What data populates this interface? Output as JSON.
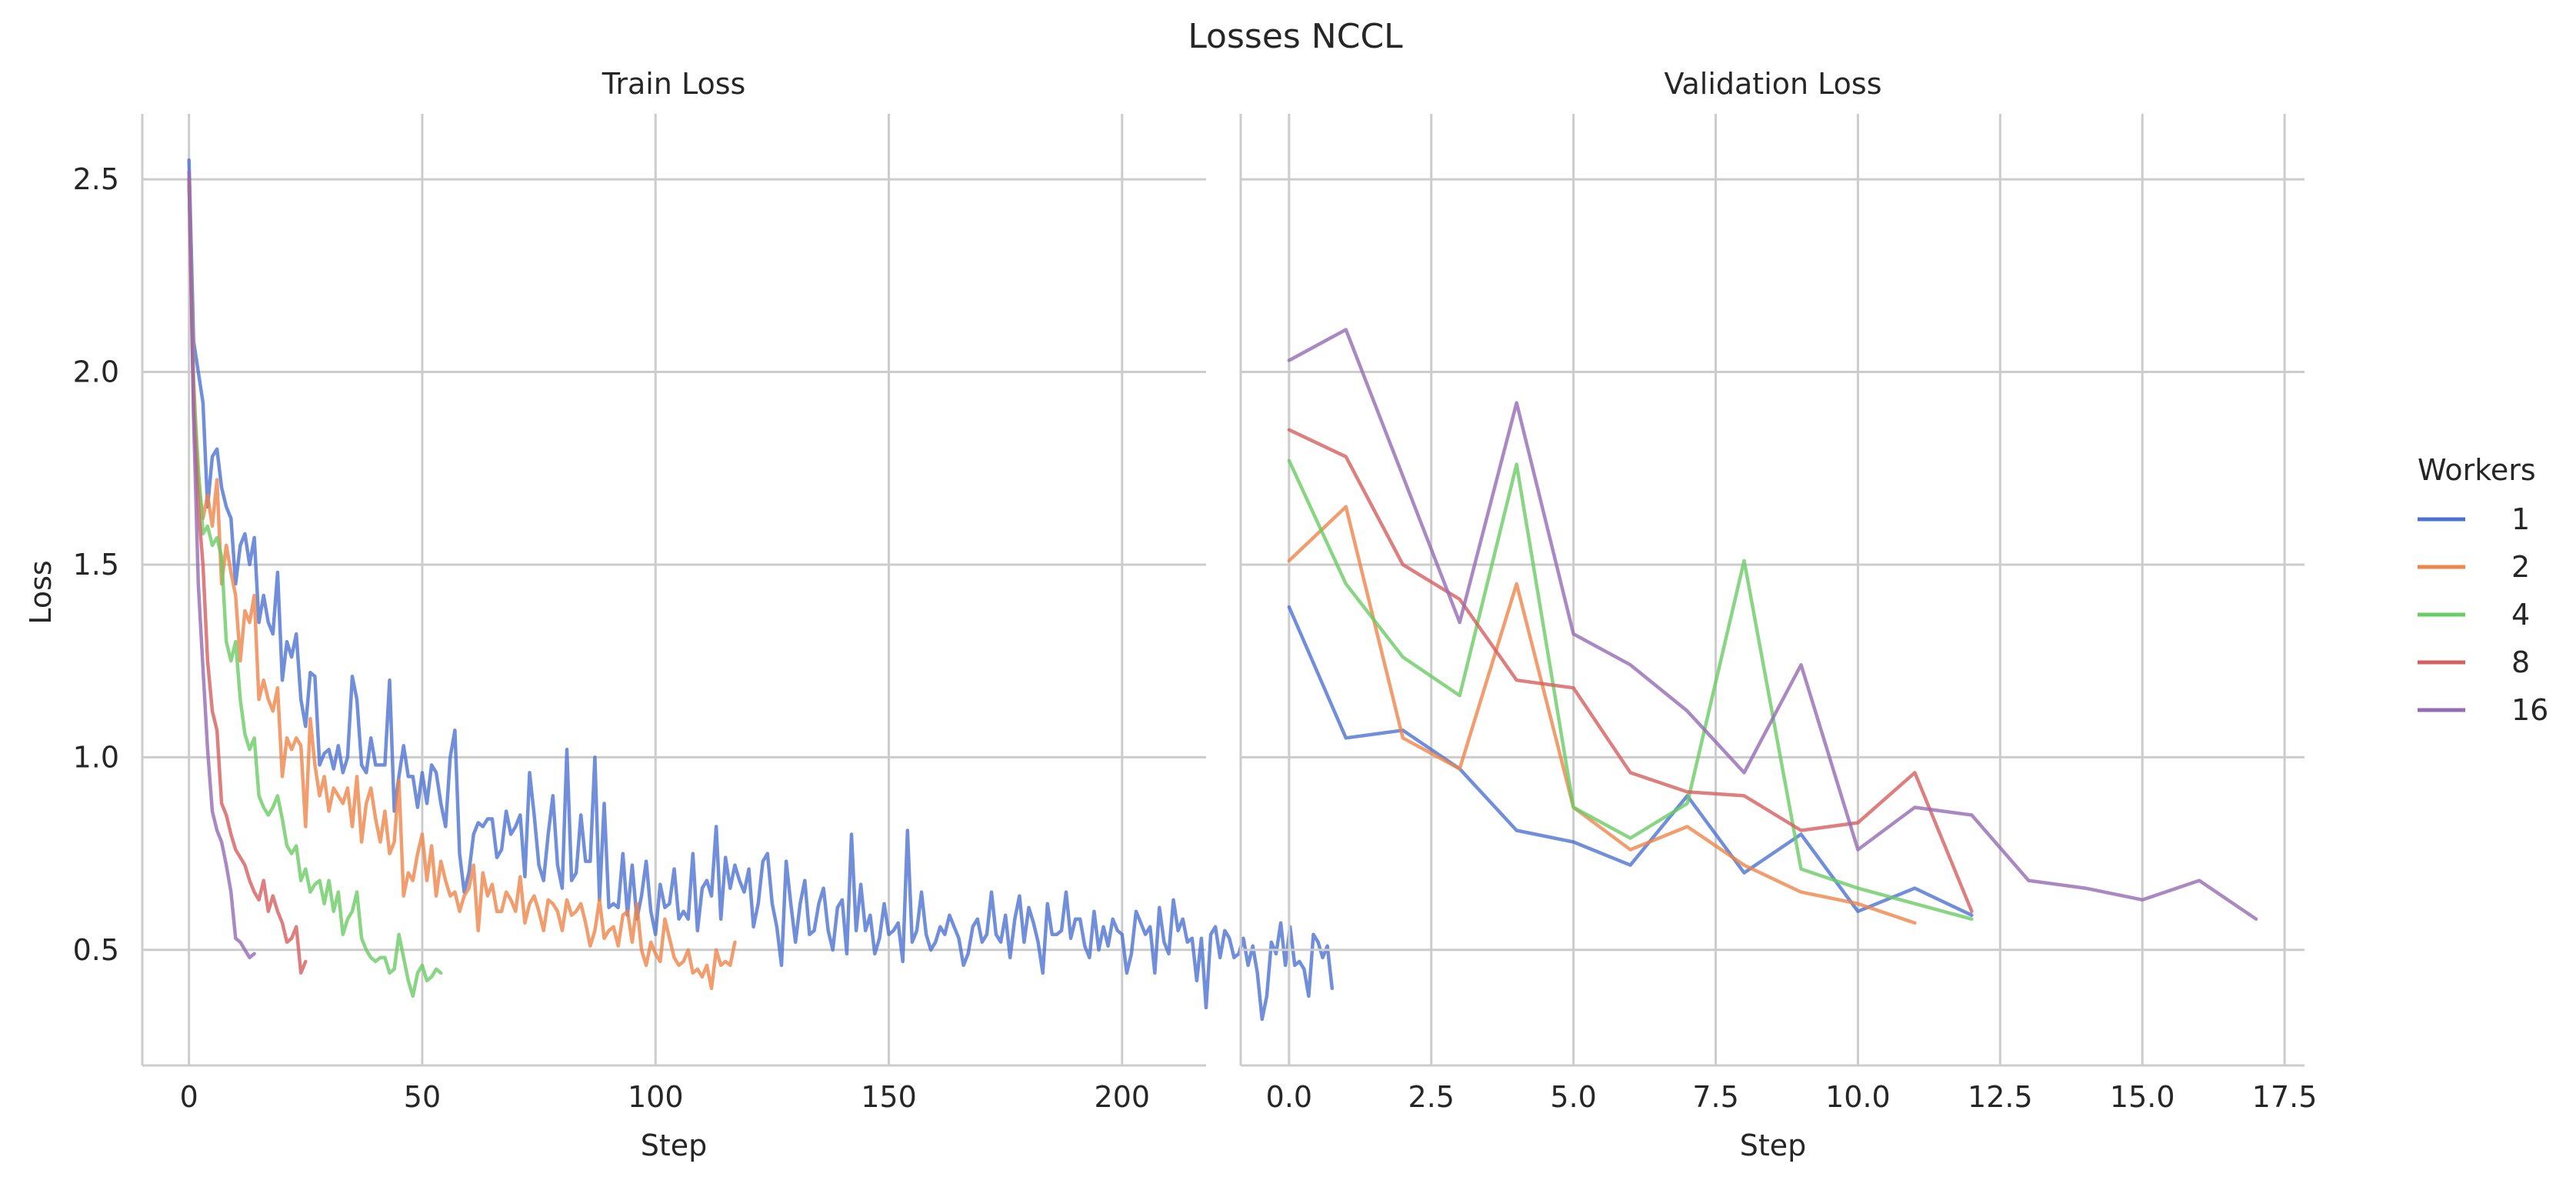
{
  "figure": {
    "title": "Losses NCCL",
    "legend": {
      "title": "Workers",
      "placement": "right"
    }
  },
  "colors": {
    "1": "#4c72d0",
    "2": "#ee854a",
    "4": "#6acc64",
    "8": "#d65f5f",
    "16": "#956cb4",
    "grid": "#cccccc",
    "axis": "#cccccc"
  },
  "chart_data": [
    {
      "type": "line",
      "title": "Train Loss",
      "xlabel": "Step",
      "ylabel": "Loss",
      "xlim": [
        -10,
        218
      ],
      "ylim": [
        0.2,
        2.67
      ],
      "xticks": [
        0,
        50,
        100,
        150,
        200
      ],
      "xtick_labels": [
        "0",
        "50",
        "100",
        "150",
        "200"
      ],
      "yticks": [
        0.5,
        1.0,
        1.5,
        2.0,
        2.5
      ],
      "ytick_labels": [
        "0.5",
        "1.0",
        "1.5",
        "2.0",
        "2.5"
      ],
      "grid": true,
      "series": [
        {
          "name": "1",
          "x_start": 0,
          "values": [
            2.55,
            2.08,
            2.0,
            1.92,
            1.65,
            1.78,
            1.8,
            1.7,
            1.65,
            1.62,
            1.45,
            1.55,
            1.58,
            1.5,
            1.57,
            1.35,
            1.42,
            1.35,
            1.32,
            1.48,
            1.2,
            1.3,
            1.26,
            1.32,
            1.15,
            1.08,
            1.22,
            1.21,
            0.98,
            1.01,
            1.02,
            0.97,
            1.03,
            0.96,
            1.0,
            1.21,
            1.15,
            0.98,
            0.96,
            1.05,
            0.98,
            0.98,
            0.98,
            1.2,
            0.86,
            0.95,
            1.03,
            0.95,
            0.95,
            0.87,
            0.96,
            0.88,
            0.98,
            0.96,
            0.88,
            0.82,
            1.0,
            1.07,
            0.75,
            0.65,
            0.7,
            0.8,
            0.83,
            0.82,
            0.84,
            0.84,
            0.74,
            0.76,
            0.86,
            0.8,
            0.82,
            0.85,
            0.69,
            0.96,
            0.85,
            0.72,
            0.68,
            0.8,
            0.9,
            0.72,
            0.66,
            1.02,
            0.68,
            0.7,
            0.85,
            0.73,
            0.73,
            1.0,
            0.63,
            0.88,
            0.61,
            0.62,
            0.61,
            0.75,
            0.59,
            0.72,
            0.58,
            0.64,
            0.73,
            0.6,
            0.54,
            0.67,
            0.61,
            0.62,
            0.71,
            0.58,
            0.6,
            0.58,
            0.75,
            0.55,
            0.66,
            0.68,
            0.64,
            0.82,
            0.58,
            0.74,
            0.66,
            0.72,
            0.68,
            0.65,
            0.71,
            0.56,
            0.62,
            0.73,
            0.75,
            0.62,
            0.56,
            0.46,
            0.73,
            0.62,
            0.52,
            0.62,
            0.68,
            0.54,
            0.55,
            0.62,
            0.66,
            0.55,
            0.5,
            0.61,
            0.63,
            0.49,
            0.8,
            0.55,
            0.67,
            0.55,
            0.59,
            0.49,
            0.53,
            0.62,
            0.54,
            0.55,
            0.57,
            0.47,
            0.81,
            0.52,
            0.55,
            0.65,
            0.54,
            0.5,
            0.52,
            0.56,
            0.54,
            0.59,
            0.56,
            0.53,
            0.46,
            0.49,
            0.56,
            0.58,
            0.52,
            0.54,
            0.65,
            0.54,
            0.52,
            0.59,
            0.48,
            0.58,
            0.64,
            0.52,
            0.61,
            0.57,
            0.52,
            0.44,
            0.62,
            0.54,
            0.54,
            0.55,
            0.65,
            0.53,
            0.58,
            0.58,
            0.51,
            0.48,
            0.6,
            0.5,
            0.56,
            0.51,
            0.58,
            0.55,
            0.54,
            0.44,
            0.49,
            0.6,
            0.57,
            0.54,
            0.56,
            0.44,
            0.61,
            0.52,
            0.49,
            0.63,
            0.55,
            0.58,
            0.52,
            0.53,
            0.42,
            0.53,
            0.35,
            0.54,
            0.56,
            0.48,
            0.55,
            0.53,
            0.48,
            0.49,
            0.53,
            0.46,
            0.51,
            0.44,
            0.32,
            0.38,
            0.52,
            0.49,
            0.57,
            0.46,
            0.56,
            0.46,
            0.47,
            0.45,
            0.38,
            0.54,
            0.52,
            0.48,
            0.51,
            0.4
          ]
        },
        {
          "name": "2",
          "x_start": 0,
          "values": [
            2.5,
            1.98,
            1.72,
            1.62,
            1.68,
            1.6,
            1.72,
            1.45,
            1.55,
            1.48,
            1.42,
            1.25,
            1.38,
            1.35,
            1.42,
            1.15,
            1.2,
            1.15,
            1.12,
            1.18,
            0.95,
            1.05,
            1.02,
            1.05,
            1.03,
            0.82,
            1.1,
            0.98,
            0.9,
            0.95,
            0.86,
            0.92,
            0.9,
            0.88,
            0.92,
            0.82,
            0.95,
            0.78,
            0.88,
            0.92,
            0.84,
            0.78,
            0.86,
            0.75,
            0.78,
            0.94,
            0.64,
            0.7,
            0.68,
            0.75,
            0.8,
            0.68,
            0.77,
            0.64,
            0.73,
            0.68,
            0.64,
            0.65,
            0.6,
            0.64,
            0.66,
            0.72,
            0.55,
            0.7,
            0.64,
            0.67,
            0.6,
            0.6,
            0.65,
            0.63,
            0.6,
            0.69,
            0.57,
            0.62,
            0.64,
            0.6,
            0.55,
            0.63,
            0.62,
            0.6,
            0.55,
            0.63,
            0.59,
            0.6,
            0.62,
            0.57,
            0.51,
            0.55,
            0.63,
            0.53,
            0.55,
            0.56,
            0.51,
            0.59,
            0.6,
            0.52,
            0.62,
            0.5,
            0.46,
            0.52,
            0.49,
            0.47,
            0.58,
            0.53,
            0.48,
            0.46,
            0.47,
            0.5,
            0.44,
            0.45,
            0.43,
            0.46,
            0.4,
            0.5,
            0.46,
            0.47,
            0.46,
            0.52
          ]
        },
        {
          "name": "4",
          "x_start": 0,
          "values": [
            2.5,
            1.95,
            1.75,
            1.58,
            1.6,
            1.55,
            1.57,
            1.52,
            1.3,
            1.25,
            1.3,
            1.15,
            1.06,
            1.02,
            1.05,
            0.9,
            0.87,
            0.85,
            0.87,
            0.9,
            0.84,
            0.77,
            0.75,
            0.77,
            0.68,
            0.71,
            0.65,
            0.67,
            0.68,
            0.62,
            0.68,
            0.6,
            0.65,
            0.54,
            0.58,
            0.6,
            0.65,
            0.53,
            0.5,
            0.48,
            0.47,
            0.48,
            0.48,
            0.44,
            0.45,
            0.54,
            0.48,
            0.42,
            0.38,
            0.44,
            0.46,
            0.42,
            0.43,
            0.45,
            0.44
          ]
        },
        {
          "name": "8",
          "x_start": 0,
          "values": [
            2.5,
            1.9,
            1.65,
            1.5,
            1.25,
            1.12,
            1.07,
            0.88,
            0.85,
            0.8,
            0.76,
            0.74,
            0.72,
            0.68,
            0.65,
            0.63,
            0.68,
            0.6,
            0.64,
            0.6,
            0.57,
            0.52,
            0.53,
            0.56,
            0.44,
            0.47
          ]
        },
        {
          "name": "16",
          "x_start": 0,
          "values": [
            2.52,
            1.88,
            1.45,
            1.23,
            1.02,
            0.86,
            0.81,
            0.78,
            0.72,
            0.65,
            0.53,
            0.52,
            0.5,
            0.48,
            0.49
          ]
        }
      ]
    },
    {
      "type": "line",
      "title": "Validation Loss",
      "xlabel": "Step",
      "ylabel": "",
      "xlim": [
        -0.85,
        17.85
      ],
      "ylim": [
        0.2,
        2.67
      ],
      "xticks": [
        0.0,
        2.5,
        5.0,
        7.5,
        10.0,
        12.5,
        15.0,
        17.5
      ],
      "xtick_labels": [
        "0.0",
        "2.5",
        "5.0",
        "7.5",
        "10.0",
        "12.5",
        "15.0",
        "17.5"
      ],
      "yticks": [
        0.5,
        1.0,
        1.5,
        2.0,
        2.5
      ],
      "grid": true,
      "series": [
        {
          "name": "1",
          "x": [
            0,
            1,
            2,
            3,
            4,
            5,
            6,
            7,
            8,
            9,
            10,
            11,
            12
          ],
          "values": [
            1.39,
            1.05,
            1.07,
            0.97,
            0.81,
            0.78,
            0.72,
            0.9,
            0.7,
            0.8,
            0.6,
            0.66,
            0.59
          ]
        },
        {
          "name": "2",
          "x": [
            0,
            1,
            2,
            3,
            4,
            5,
            6,
            7,
            8,
            9,
            10,
            11
          ],
          "values": [
            1.51,
            1.65,
            1.05,
            0.97,
            1.45,
            0.87,
            0.76,
            0.82,
            0.72,
            0.65,
            0.62,
            0.57
          ]
        },
        {
          "name": "4",
          "x": [
            0,
            1,
            2,
            3,
            4,
            5,
            6,
            7,
            8,
            9,
            10,
            11,
            12
          ],
          "values": [
            1.77,
            1.45,
            1.26,
            1.16,
            1.76,
            0.87,
            0.79,
            0.88,
            1.51,
            0.71,
            0.66,
            0.62,
            0.58
          ]
        },
        {
          "name": "8",
          "x": [
            0,
            1,
            2,
            3,
            4,
            5,
            6,
            7,
            8,
            9,
            10,
            11,
            12
          ],
          "values": [
            1.85,
            1.78,
            1.5,
            1.41,
            1.2,
            1.18,
            0.96,
            0.91,
            0.9,
            0.81,
            0.83,
            0.96,
            0.6
          ]
        },
        {
          "name": "16",
          "x": [
            0,
            1,
            2,
            3,
            4,
            5,
            6,
            7,
            8,
            9,
            10,
            11,
            12,
            13,
            14,
            15,
            16,
            17
          ],
          "values": [
            2.03,
            2.11,
            1.73,
            1.35,
            1.92,
            1.32,
            1.24,
            1.12,
            0.96,
            1.24,
            0.76,
            0.87,
            0.85,
            0.68,
            0.66,
            0.63,
            0.68,
            0.58
          ]
        }
      ]
    }
  ]
}
